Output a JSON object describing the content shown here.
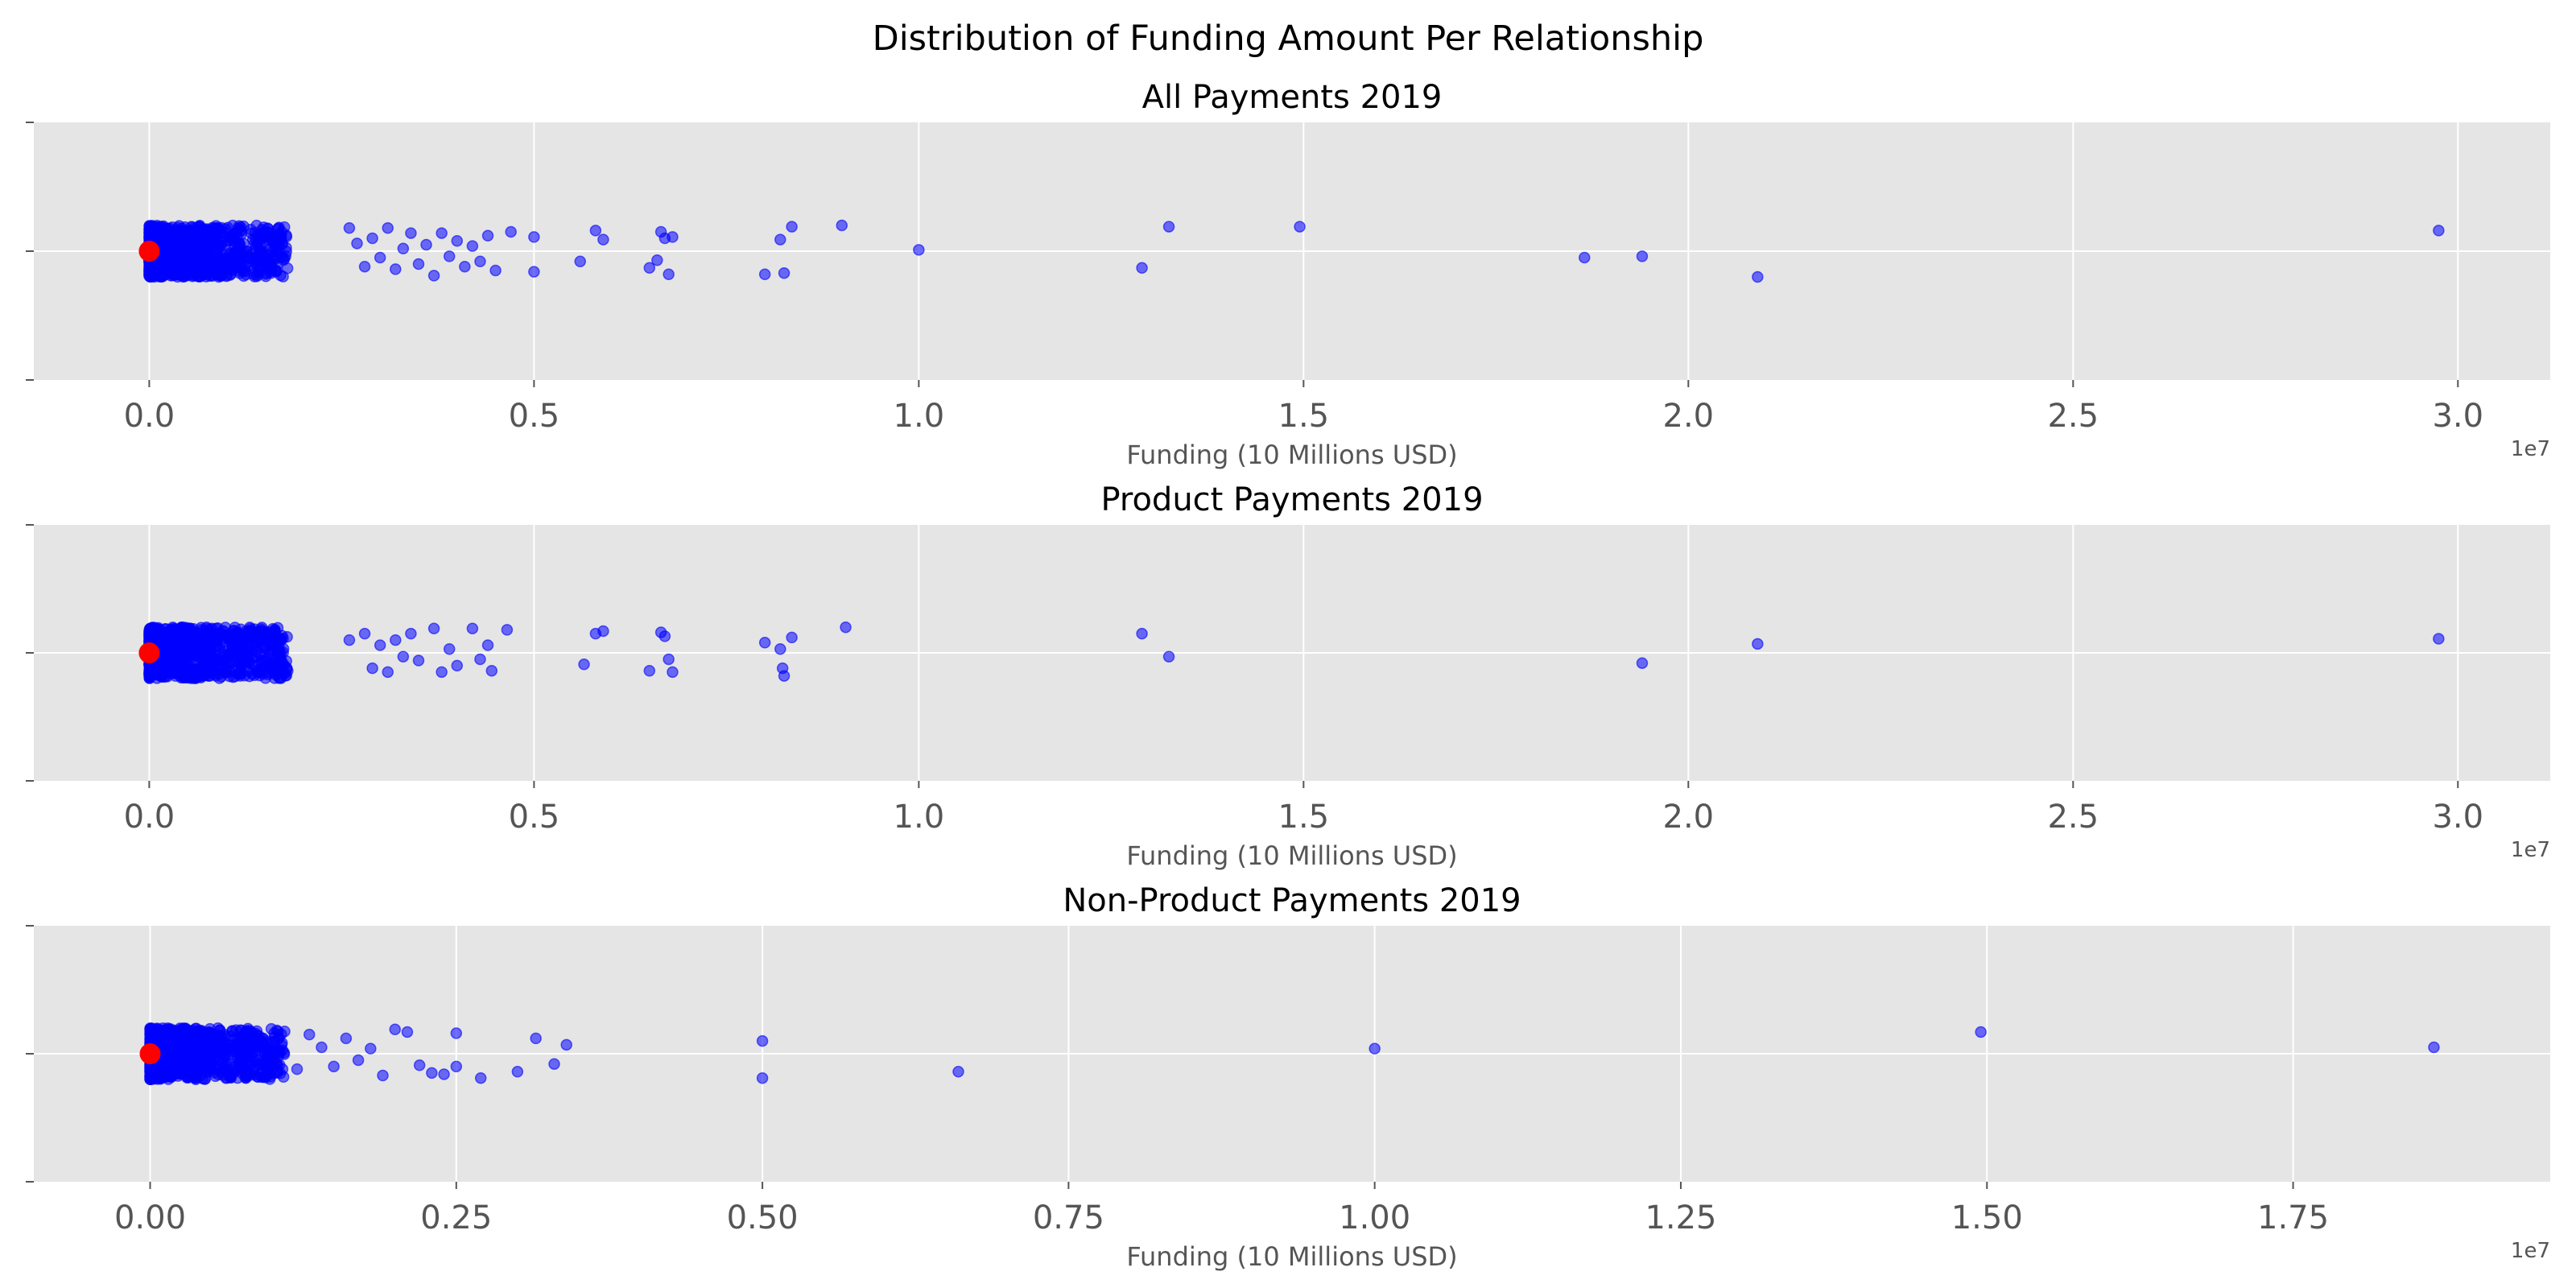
{
  "suptitle": "Distribution of Funding Amount Per Relationship",
  "colors": {
    "panel_bg": "#e5e5e5",
    "grid": "#ffffff",
    "points": "#0000ff",
    "median_marker": "#ff0000",
    "tick_label": "#555555"
  },
  "chart_data": [
    {
      "type": "scatter",
      "title": "All Payments 2019",
      "xlabel": "Funding (10 Millions USD)",
      "xlim": [
        -1500000,
        31200000
      ],
      "xticks": [
        0,
        5000000,
        10000000,
        15000000,
        20000000,
        25000000,
        30000000
      ],
      "xtick_labels": [
        "0.0",
        "0.5",
        "1.0",
        "1.5",
        "2.0",
        "2.5",
        "3.0"
      ],
      "offset_label": "1e7",
      "ylim": [
        -1,
        1
      ],
      "jitter": 0.2,
      "dense_cluster_max": 1800000,
      "outliers": [
        [
          2600000,
          0.18
        ],
        [
          2700000,
          0.06
        ],
        [
          2800000,
          -0.12
        ],
        [
          2900000,
          0.1
        ],
        [
          3000000,
          -0.05
        ],
        [
          3100000,
          0.18
        ],
        [
          3200000,
          -0.14
        ],
        [
          3300000,
          0.02
        ],
        [
          3400000,
          0.14
        ],
        [
          3500000,
          -0.1
        ],
        [
          3600000,
          0.05
        ],
        [
          3700000,
          -0.19
        ],
        [
          3800000,
          0.14
        ],
        [
          3900000,
          -0.04
        ],
        [
          4000000,
          0.08
        ],
        [
          4100000,
          -0.12
        ],
        [
          4200000,
          0.04
        ],
        [
          4300000,
          -0.08
        ],
        [
          4400000,
          0.12
        ],
        [
          4500000,
          -0.15
        ],
        [
          4700000,
          0.15
        ],
        [
          5000000,
          0.11
        ],
        [
          5000000,
          -0.16
        ],
        [
          5600000,
          -0.08
        ],
        [
          5800000,
          0.16
        ],
        [
          5900000,
          0.09
        ],
        [
          6500000,
          -0.13
        ],
        [
          6600000,
          -0.07
        ],
        [
          6650000,
          0.15
        ],
        [
          6700000,
          0.1
        ],
        [
          6750000,
          -0.18
        ],
        [
          6800000,
          0.11
        ],
        [
          8000000,
          -0.18
        ],
        [
          8200000,
          0.09
        ],
        [
          8250000,
          -0.17
        ],
        [
          8350000,
          0.19
        ],
        [
          9000000,
          0.2
        ],
        [
          10000000,
          0.01
        ],
        [
          12900000,
          -0.13
        ],
        [
          13250000,
          0.19
        ],
        [
          14950000,
          0.19
        ],
        [
          18650000,
          -0.05
        ],
        [
          19400000,
          -0.04
        ],
        [
          20900000,
          -0.2
        ],
        [
          29750000,
          0.16
        ]
      ],
      "median": [
        0,
        0
      ]
    },
    {
      "type": "scatter",
      "title": "Product Payments 2019",
      "xlabel": "Funding (10 Millions USD)",
      "xlim": [
        -1500000,
        31200000
      ],
      "xticks": [
        0,
        5000000,
        10000000,
        15000000,
        20000000,
        25000000,
        30000000
      ],
      "xtick_labels": [
        "0.0",
        "0.5",
        "1.0",
        "1.5",
        "2.0",
        "2.5",
        "3.0"
      ],
      "offset_label": "1e7",
      "ylim": [
        -1,
        1
      ],
      "jitter": 0.2,
      "dense_cluster_max": 1800000,
      "outliers": [
        [
          2600000,
          0.1
        ],
        [
          2800000,
          0.15
        ],
        [
          2900000,
          -0.12
        ],
        [
          3000000,
          0.06
        ],
        [
          3100000,
          -0.15
        ],
        [
          3200000,
          0.1
        ],
        [
          3300000,
          -0.03
        ],
        [
          3400000,
          0.15
        ],
        [
          3500000,
          -0.06
        ],
        [
          3700000,
          0.19
        ],
        [
          3800000,
          -0.15
        ],
        [
          3900000,
          0.03
        ],
        [
          4000000,
          -0.1
        ],
        [
          4200000,
          0.19
        ],
        [
          4300000,
          -0.05
        ],
        [
          4400000,
          0.06
        ],
        [
          4450000,
          -0.14
        ],
        [
          4650000,
          0.18
        ],
        [
          5650000,
          -0.09
        ],
        [
          5800000,
          0.15
        ],
        [
          5900000,
          0.17
        ],
        [
          6500000,
          -0.14
        ],
        [
          6650000,
          0.16
        ],
        [
          6700000,
          0.13
        ],
        [
          6750000,
          -0.05
        ],
        [
          6800000,
          -0.15
        ],
        [
          8000000,
          0.08
        ],
        [
          8200000,
          0.03
        ],
        [
          8230000,
          -0.12
        ],
        [
          8250000,
          -0.18
        ],
        [
          8350000,
          0.12
        ],
        [
          9050000,
          0.2
        ],
        [
          12900000,
          0.15
        ],
        [
          13250000,
          -0.03
        ],
        [
          19400000,
          -0.08
        ],
        [
          20900000,
          0.07
        ],
        [
          29750000,
          0.11
        ]
      ],
      "median": [
        0,
        0
      ]
    },
    {
      "type": "scatter",
      "title": "Non-Product Payments 2019",
      "xlabel": "Funding (10 Millions USD)",
      "xlim": [
        -950000,
        19600000
      ],
      "xticks": [
        0,
        2500000,
        5000000,
        7500000,
        10000000,
        12500000,
        15000000,
        17500000
      ],
      "xtick_labels": [
        "0.00",
        "0.25",
        "0.50",
        "0.75",
        "1.00",
        "1.25",
        "1.50",
        "1.75"
      ],
      "offset_label": "1e7",
      "ylim": [
        -1,
        1
      ],
      "jitter": 0.2,
      "dense_cluster_max": 1100000,
      "outliers": [
        [
          1200000,
          -0.12
        ],
        [
          1300000,
          0.15
        ],
        [
          1400000,
          0.05
        ],
        [
          1500000,
          -0.1
        ],
        [
          1600000,
          0.12
        ],
        [
          1700000,
          -0.05
        ],
        [
          1800000,
          0.04
        ],
        [
          1900000,
          -0.17
        ],
        [
          2000000,
          0.19
        ],
        [
          2100000,
          0.17
        ],
        [
          2200000,
          -0.09
        ],
        [
          2300000,
          -0.15
        ],
        [
          2400000,
          -0.16
        ],
        [
          2500000,
          0.16
        ],
        [
          2500000,
          -0.1
        ],
        [
          2700000,
          -0.19
        ],
        [
          3000000,
          -0.14
        ],
        [
          3150000,
          0.12
        ],
        [
          3300000,
          -0.08
        ],
        [
          3400000,
          0.07
        ],
        [
          5000000,
          0.1
        ],
        [
          5000000,
          -0.19
        ],
        [
          6600000,
          -0.14
        ],
        [
          10000000,
          0.04
        ],
        [
          14950000,
          0.17
        ],
        [
          18650000,
          0.05
        ]
      ],
      "median": [
        0,
        0
      ]
    }
  ]
}
